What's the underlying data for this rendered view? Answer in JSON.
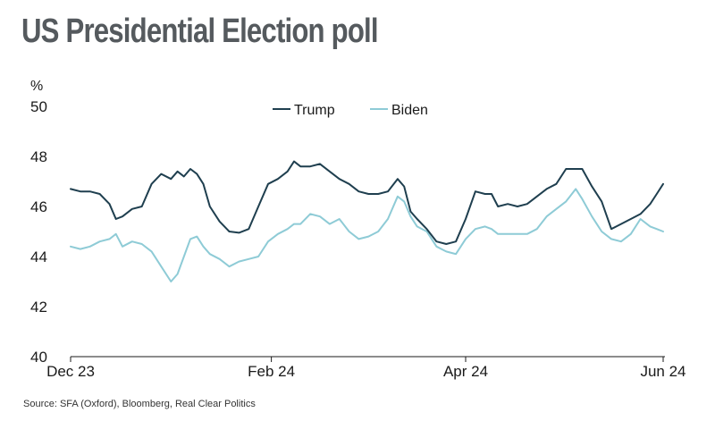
{
  "title": "US Presidential Election poll",
  "source": "Source: SFA (Oxford), Bloomberg, Real Clear Politics",
  "chart_data": {
    "type": "line",
    "ylabel": "%",
    "ylim": [
      40,
      50
    ],
    "yticks": [
      "40",
      "42",
      "44",
      "46",
      "48",
      "50"
    ],
    "xlim": [
      "2023-12-01",
      "2024-06-01"
    ],
    "xticks": [
      {
        "date": "2023-12-01",
        "label": "Dec 23"
      },
      {
        "date": "2024-02-01",
        "label": "Feb 24"
      },
      {
        "date": "2024-04-01",
        "label": "Apr 24"
      },
      {
        "date": "2024-06-01",
        "label": "Jun 24"
      }
    ],
    "grid": false,
    "legend": "top-center",
    "colors": {
      "Trump": "#1f3f4f",
      "Biden": "#8ecbd6"
    },
    "series": [
      {
        "name": "Trump",
        "points": [
          [
            "2023-12-01",
            46.7
          ],
          [
            "2023-12-04",
            46.6
          ],
          [
            "2023-12-07",
            46.6
          ],
          [
            "2023-12-10",
            46.5
          ],
          [
            "2023-12-13",
            46.1
          ],
          [
            "2023-12-15",
            45.5
          ],
          [
            "2023-12-17",
            45.6
          ],
          [
            "2023-12-20",
            45.9
          ],
          [
            "2023-12-23",
            46.0
          ],
          [
            "2023-12-26",
            46.9
          ],
          [
            "2023-12-29",
            47.3
          ],
          [
            "2024-01-01",
            47.1
          ],
          [
            "2024-01-03",
            47.4
          ],
          [
            "2024-01-05",
            47.2
          ],
          [
            "2024-01-07",
            47.5
          ],
          [
            "2024-01-09",
            47.3
          ],
          [
            "2024-01-11",
            46.9
          ],
          [
            "2024-01-13",
            46.0
          ],
          [
            "2024-01-16",
            45.4
          ],
          [
            "2024-01-19",
            45.0
          ],
          [
            "2024-01-22",
            44.95
          ],
          [
            "2024-01-25",
            45.1
          ],
          [
            "2024-01-28",
            46.0
          ],
          [
            "2024-01-31",
            46.9
          ],
          [
            "2024-02-03",
            47.1
          ],
          [
            "2024-02-06",
            47.4
          ],
          [
            "2024-02-08",
            47.8
          ],
          [
            "2024-02-10",
            47.6
          ],
          [
            "2024-02-13",
            47.6
          ],
          [
            "2024-02-16",
            47.7
          ],
          [
            "2024-02-19",
            47.4
          ],
          [
            "2024-02-22",
            47.1
          ],
          [
            "2024-02-25",
            46.9
          ],
          [
            "2024-02-28",
            46.6
          ],
          [
            "2024-03-02",
            46.5
          ],
          [
            "2024-03-05",
            46.5
          ],
          [
            "2024-03-08",
            46.6
          ],
          [
            "2024-03-11",
            47.1
          ],
          [
            "2024-03-13",
            46.8
          ],
          [
            "2024-03-15",
            45.8
          ],
          [
            "2024-03-17",
            45.5
          ],
          [
            "2024-03-20",
            45.1
          ],
          [
            "2024-03-23",
            44.6
          ],
          [
            "2024-03-26",
            44.5
          ],
          [
            "2024-03-29",
            44.6
          ],
          [
            "2024-04-01",
            45.5
          ],
          [
            "2024-04-04",
            46.6
          ],
          [
            "2024-04-07",
            46.5
          ],
          [
            "2024-04-09",
            46.5
          ],
          [
            "2024-04-11",
            46.0
          ],
          [
            "2024-04-14",
            46.1
          ],
          [
            "2024-04-17",
            46.0
          ],
          [
            "2024-04-20",
            46.1
          ],
          [
            "2024-04-23",
            46.4
          ],
          [
            "2024-04-26",
            46.7
          ],
          [
            "2024-04-29",
            46.9
          ],
          [
            "2024-05-02",
            47.5
          ],
          [
            "2024-05-05",
            47.5
          ],
          [
            "2024-05-07",
            47.5
          ],
          [
            "2024-05-10",
            46.8
          ],
          [
            "2024-05-13",
            46.2
          ],
          [
            "2024-05-16",
            45.1
          ],
          [
            "2024-05-19",
            45.3
          ],
          [
            "2024-05-22",
            45.5
          ],
          [
            "2024-05-25",
            45.7
          ],
          [
            "2024-05-28",
            46.1
          ],
          [
            "2024-05-30",
            46.5
          ],
          [
            "2024-06-01",
            46.9
          ]
        ]
      },
      {
        "name": "Biden",
        "points": [
          [
            "2023-12-01",
            44.4
          ],
          [
            "2023-12-04",
            44.3
          ],
          [
            "2023-12-07",
            44.4
          ],
          [
            "2023-12-10",
            44.6
          ],
          [
            "2023-12-13",
            44.7
          ],
          [
            "2023-12-15",
            44.9
          ],
          [
            "2023-12-17",
            44.4
          ],
          [
            "2023-12-20",
            44.6
          ],
          [
            "2023-12-23",
            44.5
          ],
          [
            "2023-12-26",
            44.2
          ],
          [
            "2023-12-29",
            43.6
          ],
          [
            "2024-01-01",
            43.0
          ],
          [
            "2024-01-03",
            43.3
          ],
          [
            "2024-01-05",
            44.0
          ],
          [
            "2024-01-07",
            44.7
          ],
          [
            "2024-01-09",
            44.8
          ],
          [
            "2024-01-11",
            44.4
          ],
          [
            "2024-01-13",
            44.1
          ],
          [
            "2024-01-16",
            43.9
          ],
          [
            "2024-01-19",
            43.6
          ],
          [
            "2024-01-22",
            43.8
          ],
          [
            "2024-01-25",
            43.9
          ],
          [
            "2024-01-28",
            44.0
          ],
          [
            "2024-01-31",
            44.6
          ],
          [
            "2024-02-03",
            44.9
          ],
          [
            "2024-02-06",
            45.1
          ],
          [
            "2024-02-08",
            45.3
          ],
          [
            "2024-02-10",
            45.3
          ],
          [
            "2024-02-13",
            45.7
          ],
          [
            "2024-02-16",
            45.6
          ],
          [
            "2024-02-19",
            45.3
          ],
          [
            "2024-02-22",
            45.5
          ],
          [
            "2024-02-25",
            45.0
          ],
          [
            "2024-02-28",
            44.7
          ],
          [
            "2024-03-02",
            44.8
          ],
          [
            "2024-03-05",
            45.0
          ],
          [
            "2024-03-08",
            45.5
          ],
          [
            "2024-03-11",
            46.4
          ],
          [
            "2024-03-13",
            46.2
          ],
          [
            "2024-03-15",
            45.6
          ],
          [
            "2024-03-17",
            45.2
          ],
          [
            "2024-03-20",
            45.0
          ],
          [
            "2024-03-23",
            44.4
          ],
          [
            "2024-03-26",
            44.2
          ],
          [
            "2024-03-29",
            44.1
          ],
          [
            "2024-04-01",
            44.7
          ],
          [
            "2024-04-04",
            45.1
          ],
          [
            "2024-04-07",
            45.2
          ],
          [
            "2024-04-09",
            45.1
          ],
          [
            "2024-04-11",
            44.9
          ],
          [
            "2024-04-14",
            44.9
          ],
          [
            "2024-04-17",
            44.9
          ],
          [
            "2024-04-20",
            44.9
          ],
          [
            "2024-04-23",
            45.1
          ],
          [
            "2024-04-26",
            45.6
          ],
          [
            "2024-04-29",
            45.9
          ],
          [
            "2024-05-02",
            46.2
          ],
          [
            "2024-05-05",
            46.7
          ],
          [
            "2024-05-07",
            46.3
          ],
          [
            "2024-05-10",
            45.6
          ],
          [
            "2024-05-13",
            45.0
          ],
          [
            "2024-05-16",
            44.7
          ],
          [
            "2024-05-19",
            44.6
          ],
          [
            "2024-05-22",
            44.9
          ],
          [
            "2024-05-25",
            45.5
          ],
          [
            "2024-05-28",
            45.2
          ],
          [
            "2024-05-30",
            45.1
          ],
          [
            "2024-06-01",
            45.0
          ]
        ]
      }
    ]
  }
}
